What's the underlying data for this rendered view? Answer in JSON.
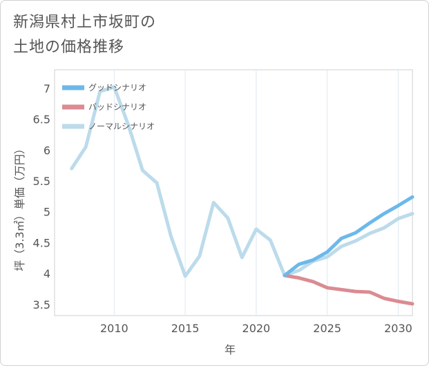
{
  "title": {
    "line1": "新潟県村上市坂町の",
    "line2": "土地の価格推移"
  },
  "chart_data": {
    "type": "line",
    "xlabel": "年",
    "ylabel": "坪（3.3㎡）単価（万円）",
    "xlim": [
      2005.8,
      2031
    ],
    "ylim": [
      3.32,
      7.3
    ],
    "x_ticks": [
      2010,
      2015,
      2020,
      2025,
      2030
    ],
    "y_ticks": [
      3.5,
      4,
      4.5,
      5,
      5.5,
      6,
      6.5,
      7
    ],
    "grid": true,
    "legend_position": "top-left",
    "series": [
      {
        "name": "グッドシナリオ",
        "color": "#6db8ea",
        "x": [
          2022,
          2023,
          2024,
          2025,
          2026,
          2027,
          2028,
          2029,
          2030,
          2031
        ],
        "y": [
          3.97,
          4.15,
          4.22,
          4.35,
          4.57,
          4.66,
          4.82,
          4.97,
          5.1,
          5.24
        ]
      },
      {
        "name": "バッドシナリオ",
        "color": "#db8b92",
        "x": [
          2022,
          2023,
          2024,
          2025,
          2026,
          2027,
          2028,
          2029,
          2030,
          2031
        ],
        "y": [
          3.97,
          3.93,
          3.87,
          3.77,
          3.74,
          3.71,
          3.7,
          3.6,
          3.55,
          3.51
        ]
      },
      {
        "name": "ノーマルシナリオ",
        "color": "#bcdbeb",
        "x": [
          2007,
          2008,
          2009,
          2010,
          2011,
          2012,
          2013,
          2014,
          2015,
          2016,
          2017,
          2018,
          2019,
          2020,
          2021,
          2022,
          2023,
          2024,
          2025,
          2026,
          2027,
          2028,
          2029,
          2030,
          2031
        ],
        "y": [
          5.7,
          6.05,
          6.95,
          7.02,
          6.4,
          5.67,
          5.47,
          4.6,
          3.96,
          4.28,
          5.15,
          4.9,
          4.26,
          4.72,
          4.54,
          3.97,
          4.05,
          4.2,
          4.27,
          4.44,
          4.53,
          4.65,
          4.74,
          4.89,
          4.97
        ]
      }
    ]
  }
}
